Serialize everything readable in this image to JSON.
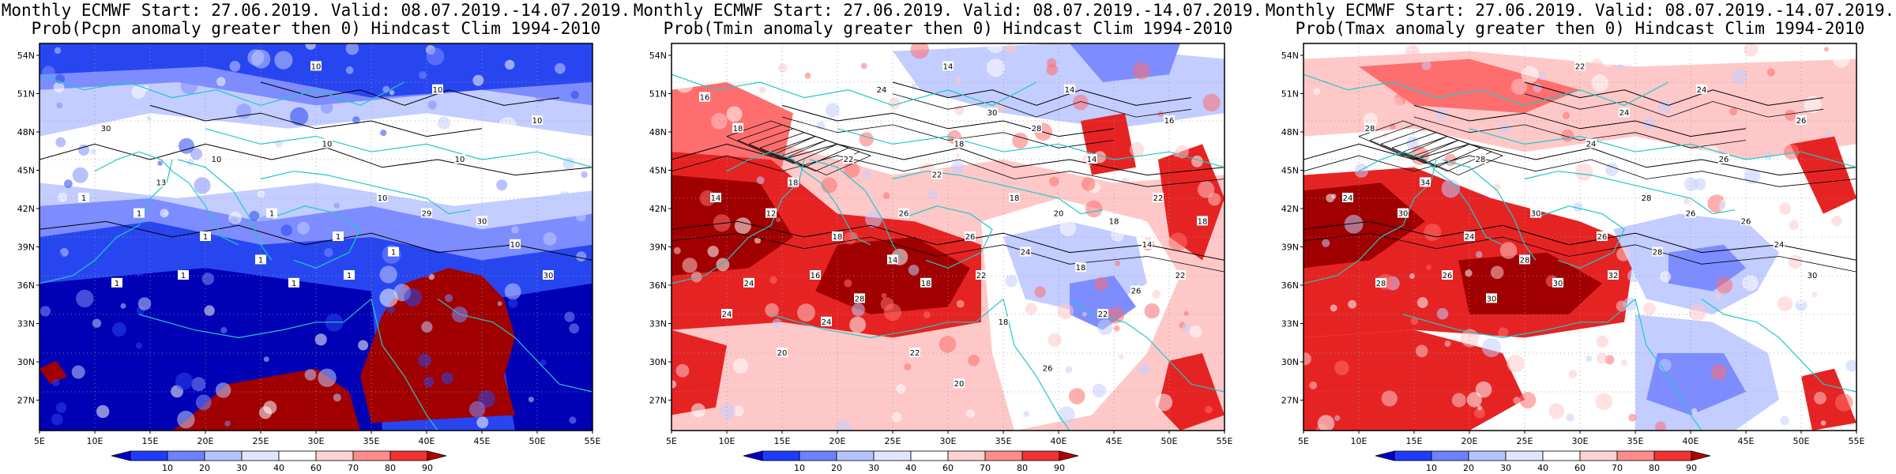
{
  "panels": [
    {
      "title_line1": "Monthly ECMWF Start: 27.06.2019. Valid: 08.07.2019.-14.07.2019.",
      "title_line2": "Prob(Pcpn anomaly greater then 0) Hindcast Clim 1994-2010",
      "contour_labels": [
        "1",
        "10",
        "10",
        "30",
        "10",
        "10",
        "10",
        "1",
        "1",
        "1",
        "10",
        "29",
        "30",
        "1",
        "1",
        "1",
        "13",
        "10",
        "1",
        "1",
        "1",
        "10",
        "30",
        "1"
      ]
    },
    {
      "title_line1": "Monthly ECMWF Start: 27.06.2019. Valid: 08.07.2019.-14.07.2019.",
      "title_line2": "Prob(Tmin anomaly greater then 0) Hindcast Clim 1994-2010",
      "contour_labels": [
        "14",
        "14",
        "14",
        "18",
        "18",
        "14",
        "14",
        "12",
        "18",
        "14",
        "18",
        "20",
        "18",
        "22",
        "18",
        "16",
        "18",
        "22",
        "24",
        "26",
        "26",
        "16",
        "22",
        "24",
        "30",
        "28",
        "18",
        "28",
        "26",
        "22",
        "24",
        "18",
        "22",
        "24",
        "22",
        "20",
        "26",
        "24",
        "22",
        "20",
        "18",
        "16"
      ]
    },
    {
      "title_line1": "Monthly ECMWF Start: 27.06.2019. Valid: 08.07.2019.-14.07.2019.",
      "title_line2": "Prob(Tmax anomaly greater then 0) Hindcast Clim 1994-2010",
      "contour_labels": [
        "24",
        "22",
        "24",
        "28",
        "24",
        "26",
        "24",
        "30",
        "24",
        "28",
        "28",
        "26",
        "26",
        "32",
        "30",
        "26",
        "34",
        "28",
        "28",
        "30",
        "26",
        "26",
        "30",
        "28",
        "24",
        "30"
      ]
    }
  ],
  "axes": {
    "lat_labels": [
      "54N",
      "51N",
      "48N",
      "45N",
      "42N",
      "39N",
      "36N",
      "33N",
      "30N",
      "27N"
    ],
    "lon_labels": [
      "5E",
      "10E",
      "15E",
      "20E",
      "25E",
      "30E",
      "35E",
      "40E",
      "45E",
      "50E",
      "55E"
    ]
  },
  "colorbar": {
    "labels": [
      "10",
      "20",
      "30",
      "40",
      "60",
      "70",
      "80",
      "90"
    ],
    "colors": [
      "#0000c8",
      "#1e3cff",
      "#6e82ff",
      "#b4c3ff",
      "#e1e6ff",
      "#ffffff",
      "#ffd2d2",
      "#ff8c8c",
      "#f03232",
      "#b40000"
    ]
  },
  "colors": {
    "coast": "#20c8c8",
    "contour": "#000000",
    "very_low": "#0000b4",
    "low": "#2846f0",
    "mid_low": "#7d8cff",
    "pale_blue": "#c3cdff",
    "white": "#ffffff",
    "pale_red": "#ffc8c8",
    "mid_red": "#ff6e6e",
    "red": "#e62323",
    "dark_red": "#a00000"
  }
}
